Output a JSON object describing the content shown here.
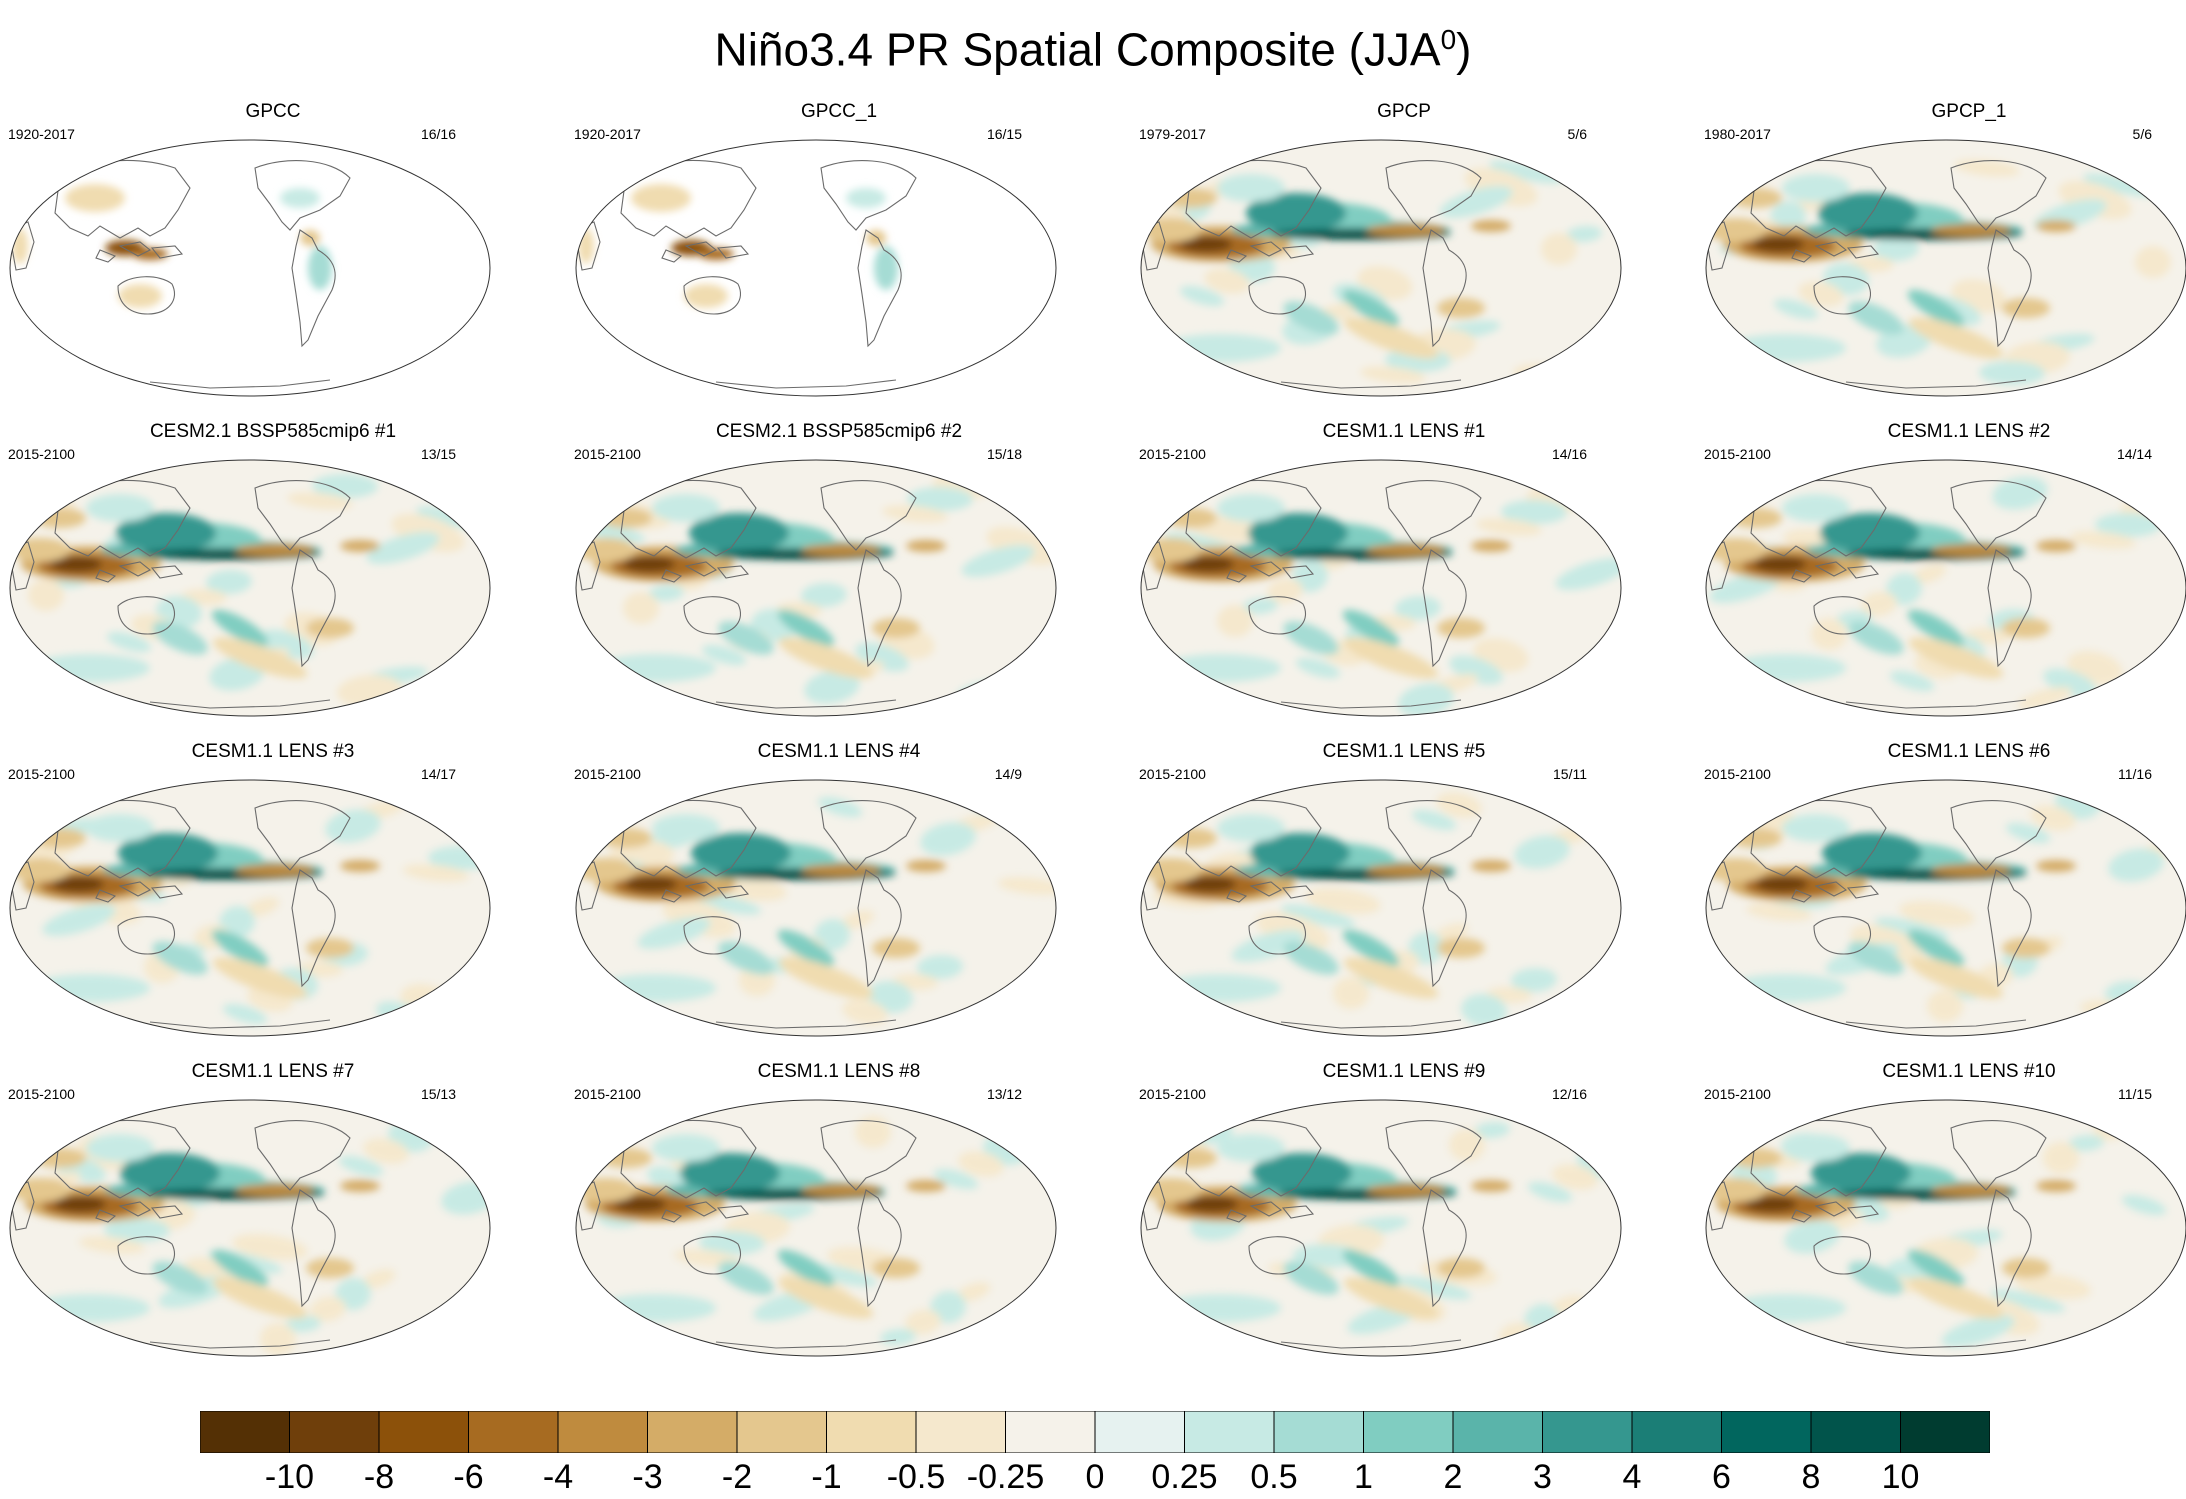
{
  "title": {
    "main": "Niño3.4 PR Spatial Composite (JJA",
    "superscript": "0",
    "close": ")"
  },
  "panels": [
    {
      "title": "GPCC",
      "period": "1920-2017",
      "count": "16/16",
      "kind": "land"
    },
    {
      "title": "GPCC_1",
      "period": "1920-2017",
      "count": "16/15",
      "kind": "land"
    },
    {
      "title": "GPCP",
      "period": "1979-2017",
      "count": "5/6",
      "kind": "obs"
    },
    {
      "title": "GPCP_1",
      "period": "1980-2017",
      "count": "5/6",
      "kind": "obs"
    },
    {
      "title": "CESM2.1 BSSP585cmip6 #1",
      "period": "2015-2100",
      "count": "13/15",
      "kind": "model"
    },
    {
      "title": "CESM2.1 BSSP585cmip6 #2",
      "period": "2015-2100",
      "count": "15/18",
      "kind": "model"
    },
    {
      "title": "CESM1.1 LENS #1",
      "period": "2015-2100",
      "count": "14/16",
      "kind": "model"
    },
    {
      "title": "CESM1.1 LENS #2",
      "period": "2015-2100",
      "count": "14/14",
      "kind": "model"
    },
    {
      "title": "CESM1.1 LENS #3",
      "period": "2015-2100",
      "count": "14/17",
      "kind": "model"
    },
    {
      "title": "CESM1.1 LENS #4",
      "period": "2015-2100",
      "count": "14/9",
      "kind": "model"
    },
    {
      "title": "CESM1.1 LENS #5",
      "period": "2015-2100",
      "count": "15/11",
      "kind": "model"
    },
    {
      "title": "CESM1.1 LENS #6",
      "period": "2015-2100",
      "count": "11/16",
      "kind": "model"
    },
    {
      "title": "CESM1.1 LENS #7",
      "period": "2015-2100",
      "count": "15/13",
      "kind": "model"
    },
    {
      "title": "CESM1.1 LENS #8",
      "period": "2015-2100",
      "count": "13/12",
      "kind": "model"
    },
    {
      "title": "CESM1.1 LENS #9",
      "period": "2015-2100",
      "count": "12/16",
      "kind": "model"
    },
    {
      "title": "CESM1.1 LENS #10",
      "period": "2015-2100",
      "count": "11/15",
      "kind": "model"
    }
  ],
  "colorbar": {
    "colors": [
      "#543005",
      "#6f3f0b",
      "#8c510a",
      "#a76b21",
      "#bf8b3e",
      "#d4ac67",
      "#e4c78e",
      "#f0dcb0",
      "#f5e8cd",
      "#f5f2ea",
      "#e6f2f0",
      "#c7eae4",
      "#a5dcd4",
      "#80cdc1",
      "#5ab4aa",
      "#35978f",
      "#1b7e76",
      "#01665e",
      "#01544b",
      "#003c30"
    ],
    "labels": [
      "-10",
      "-8",
      "-6",
      "-4",
      "-3",
      "-2",
      "-1",
      "-0.5",
      "-0.25",
      "0",
      "0.25",
      "0.5",
      "1",
      "2",
      "3",
      "4",
      "6",
      "8",
      "10"
    ]
  }
}
